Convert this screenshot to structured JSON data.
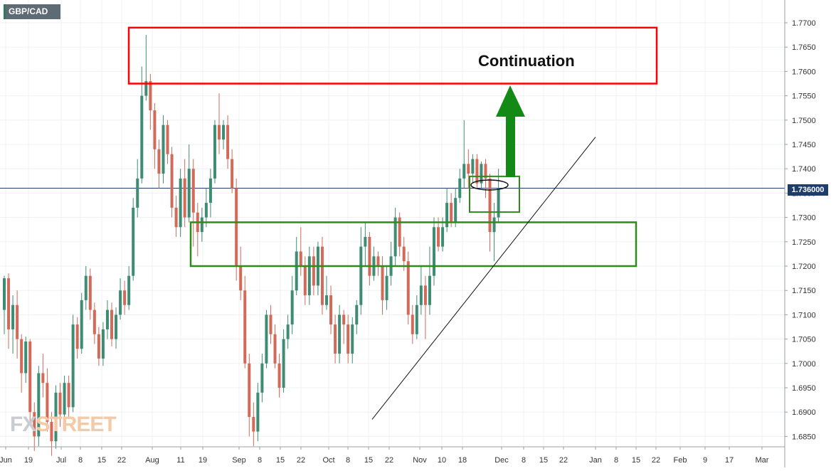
{
  "symbol": "GBP/CAD",
  "watermark": {
    "part1": "FX",
    "part2": "STREET"
  },
  "annotation": "Continuation",
  "current_price_label": "1.736000",
  "colors": {
    "up": "#3f8c74",
    "down": "#d26a5a",
    "resistance_box": "#ff0000",
    "support_box": "#2e8b1a",
    "arrow": "#138a16",
    "price_line": "#1f3d6b"
  },
  "chart_data": {
    "type": "candlestick",
    "title": "",
    "y_range": [
      1.6825,
      1.7725
    ],
    "y_ticks": [
      1.685,
      1.69,
      1.695,
      1.7,
      1.705,
      1.71,
      1.715,
      1.72,
      1.725,
      1.73,
      1.735,
      1.74,
      1.745,
      1.75,
      1.755,
      1.76,
      1.765,
      1.77
    ],
    "x_labels": [
      "Jun",
      "19",
      "Jul",
      "8",
      "15",
      "22",
      "Aug",
      "11",
      "19",
      "Sep",
      "8",
      "15",
      "22",
      "Oct",
      "8",
      "15",
      "22",
      "Nov",
      "10",
      "18",
      "Dec",
      "8",
      "15",
      "22",
      "Jan",
      "8",
      "15",
      "22",
      "Feb",
      "9",
      "17",
      "Mar"
    ],
    "current_price": 1.736,
    "overlays": [
      {
        "type": "resistance_zone",
        "low": 1.7575,
        "high": 1.769,
        "label": "Continuation"
      },
      {
        "type": "support_zone",
        "low": 1.72,
        "high": 1.729
      },
      {
        "type": "consolidation_box",
        "low": 1.733,
        "high": 1.738
      },
      {
        "type": "trendline",
        "from": 1.6885,
        "to": 1.7465
      },
      {
        "type": "arrow_up"
      }
    ],
    "candles": [
      [
        1.711,
        1.7175,
        1.718,
        1.706
      ],
      [
        1.7175,
        1.707,
        1.7185,
        1.703
      ],
      [
        1.707,
        1.712,
        1.714,
        1.702
      ],
      [
        1.712,
        1.705,
        1.715,
        1.701
      ],
      [
        1.705,
        1.698,
        1.706,
        1.694
      ],
      [
        1.698,
        1.7045,
        1.7055,
        1.696
      ],
      [
        1.7045,
        1.69,
        1.705,
        1.688
      ],
      [
        1.69,
        1.685,
        1.692,
        1.682
      ],
      [
        1.685,
        1.698,
        1.6995,
        1.683
      ],
      [
        1.698,
        1.696,
        1.702,
        1.693
      ],
      [
        1.696,
        1.688,
        1.699,
        1.686
      ],
      [
        1.688,
        1.684,
        1.69,
        1.681
      ],
      [
        1.684,
        1.694,
        1.6955,
        1.6825
      ],
      [
        1.694,
        1.6895,
        1.696,
        1.687
      ],
      [
        1.6895,
        1.696,
        1.6975,
        1.688
      ],
      [
        1.696,
        1.691,
        1.6975,
        1.689
      ],
      [
        1.691,
        1.708,
        1.71,
        1.69
      ],
      [
        1.708,
        1.703,
        1.7095,
        1.701
      ],
      [
        1.703,
        1.713,
        1.7145,
        1.702
      ],
      [
        1.713,
        1.718,
        1.72,
        1.711
      ],
      [
        1.718,
        1.711,
        1.7195,
        1.709
      ],
      [
        1.711,
        1.706,
        1.7125,
        1.704
      ],
      [
        1.706,
        1.701,
        1.7075,
        1.6995
      ],
      [
        1.701,
        1.707,
        1.7085,
        1.6995
      ],
      [
        1.707,
        1.711,
        1.713,
        1.705
      ],
      [
        1.711,
        1.705,
        1.7125,
        1.7035
      ],
      [
        1.705,
        1.71,
        1.7115,
        1.703
      ],
      [
        1.71,
        1.715,
        1.7175,
        1.709
      ],
      [
        1.715,
        1.712,
        1.717,
        1.71
      ],
      [
        1.712,
        1.718,
        1.72,
        1.711
      ],
      [
        1.718,
        1.732,
        1.734,
        1.717
      ],
      [
        1.732,
        1.738,
        1.742,
        1.73
      ],
      [
        1.738,
        1.755,
        1.761,
        1.737
      ],
      [
        1.755,
        1.758,
        1.7675,
        1.754
      ],
      [
        1.758,
        1.752,
        1.7595,
        1.748
      ],
      [
        1.752,
        1.744,
        1.7535,
        1.74
      ],
      [
        1.744,
        1.739,
        1.746,
        1.736
      ],
      [
        1.739,
        1.749,
        1.751,
        1.737
      ],
      [
        1.749,
        1.743,
        1.75,
        1.741
      ],
      [
        1.743,
        1.732,
        1.7445,
        1.73
      ],
      [
        1.732,
        1.728,
        1.7345,
        1.726
      ],
      [
        1.728,
        1.738,
        1.74,
        1.726
      ],
      [
        1.738,
        1.73,
        1.742,
        1.728
      ],
      [
        1.73,
        1.74,
        1.745,
        1.729
      ],
      [
        1.74,
        1.731,
        1.742,
        1.724
      ],
      [
        1.731,
        1.727,
        1.733,
        1.722
      ],
      [
        1.727,
        1.73,
        1.732,
        1.725
      ],
      [
        1.73,
        1.733,
        1.736,
        1.728
      ],
      [
        1.733,
        1.738,
        1.74,
        1.73
      ],
      [
        1.738,
        1.749,
        1.75,
        1.737
      ],
      [
        1.749,
        1.746,
        1.7555,
        1.743
      ],
      [
        1.746,
        1.749,
        1.75,
        1.744
      ],
      [
        1.749,
        1.742,
        1.751,
        1.74
      ],
      [
        1.742,
        1.736,
        1.744,
        1.735
      ],
      [
        1.736,
        1.72,
        1.738,
        1.717
      ],
      [
        1.72,
        1.715,
        1.724,
        1.713
      ],
      [
        1.715,
        1.7,
        1.718,
        1.699
      ],
      [
        1.7,
        1.689,
        1.702,
        1.685
      ],
      [
        1.689,
        1.686,
        1.692,
        1.683
      ],
      [
        1.686,
        1.694,
        1.696,
        1.684
      ],
      [
        1.694,
        1.7,
        1.702,
        1.692
      ],
      [
        1.7,
        1.71,
        1.711,
        1.699
      ],
      [
        1.71,
        1.706,
        1.712,
        1.704
      ],
      [
        1.706,
        1.7,
        1.708,
        1.699
      ],
      [
        1.7,
        1.695,
        1.702,
        1.693
      ],
      [
        1.695,
        1.705,
        1.707,
        1.694
      ],
      [
        1.705,
        1.708,
        1.71,
        1.703
      ],
      [
        1.708,
        1.715,
        1.718,
        1.706
      ],
      [
        1.715,
        1.723,
        1.726,
        1.714
      ],
      [
        1.723,
        1.72,
        1.728,
        1.718
      ],
      [
        1.72,
        1.714,
        1.722,
        1.712
      ],
      [
        1.714,
        1.722,
        1.724,
        1.712
      ],
      [
        1.722,
        1.716,
        1.724,
        1.714
      ],
      [
        1.716,
        1.724,
        1.725,
        1.714
      ],
      [
        1.724,
        1.712,
        1.726,
        1.71
      ],
      [
        1.712,
        1.714,
        1.718,
        1.711
      ],
      [
        1.714,
        1.708,
        1.716,
        1.706
      ],
      [
        1.708,
        1.702,
        1.71,
        1.7
      ],
      [
        1.702,
        1.71,
        1.712,
        1.7
      ],
      [
        1.71,
        1.708,
        1.711,
        1.704
      ],
      [
        1.708,
        1.702,
        1.71,
        1.7
      ],
      [
        1.702,
        1.708,
        1.7095,
        1.7
      ],
      [
        1.708,
        1.712,
        1.713,
        1.706
      ],
      [
        1.712,
        1.724,
        1.728,
        1.71
      ],
      [
        1.724,
        1.726,
        1.729,
        1.72
      ],
      [
        1.726,
        1.718,
        1.727,
        1.716
      ],
      [
        1.718,
        1.722,
        1.724,
        1.717
      ],
      [
        1.722,
        1.72,
        1.723,
        1.718
      ],
      [
        1.72,
        1.713,
        1.722,
        1.71
      ],
      [
        1.713,
        1.718,
        1.72,
        1.711
      ],
      [
        1.718,
        1.722,
        1.725,
        1.716
      ],
      [
        1.722,
        1.73,
        1.732,
        1.72
      ],
      [
        1.73,
        1.724,
        1.731,
        1.722
      ],
      [
        1.724,
        1.721,
        1.726,
        1.719
      ],
      [
        1.721,
        1.71,
        1.723,
        1.708
      ],
      [
        1.71,
        1.706,
        1.712,
        1.704
      ],
      [
        1.706,
        1.712,
        1.714,
        1.705
      ],
      [
        1.712,
        1.716,
        1.72,
        1.71
      ],
      [
        1.716,
        1.712,
        1.718,
        1.705
      ],
      [
        1.712,
        1.718,
        1.724,
        1.71
      ],
      [
        1.718,
        1.728,
        1.73,
        1.716
      ],
      [
        1.728,
        1.724,
        1.73,
        1.723
      ],
      [
        1.724,
        1.728,
        1.73,
        1.723
      ],
      [
        1.728,
        1.733,
        1.736,
        1.727
      ],
      [
        1.733,
        1.729,
        1.735,
        1.728
      ],
      [
        1.729,
        1.734,
        1.736,
        1.728
      ],
      [
        1.734,
        1.738,
        1.74,
        1.733
      ],
      [
        1.738,
        1.741,
        1.75,
        1.736
      ],
      [
        1.741,
        1.739,
        1.744,
        1.736
      ],
      [
        1.739,
        1.742,
        1.743,
        1.737
      ],
      [
        1.742,
        1.737,
        1.743,
        1.736
      ],
      [
        1.737,
        1.741,
        1.7415,
        1.736
      ],
      [
        1.741,
        1.738,
        1.742,
        1.734
      ],
      [
        1.738,
        1.727,
        1.739,
        1.723
      ],
      [
        1.727,
        1.73,
        1.733,
        1.721
      ],
      [
        1.73,
        1.736,
        1.74,
        1.729
      ]
    ]
  }
}
